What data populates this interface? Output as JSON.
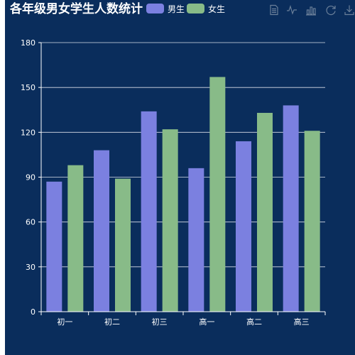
{
  "chart_data": {
    "type": "bar",
    "title": "各年级男女学生人数统计",
    "categories": [
      "初一",
      "初二",
      "初三",
      "高一",
      "高二",
      "高三"
    ],
    "series": [
      {
        "name": "男生",
        "color": "#7b80e0",
        "values": [
          87,
          108,
          134,
          96,
          114,
          138
        ]
      },
      {
        "name": "女生",
        "color": "#88bb88",
        "values": [
          98,
          89,
          122,
          157,
          133,
          121
        ]
      }
    ],
    "ylim": [
      0,
      180
    ],
    "yticks": [
      0,
      30,
      60,
      90,
      120,
      150,
      180
    ],
    "grid": true,
    "legend": "top",
    "background": "#0a2d5c"
  },
  "toolbox": {
    "icons": [
      "data-view-icon",
      "line-chart-icon",
      "bar-chart-icon",
      "restore-icon",
      "save-image-icon"
    ]
  }
}
